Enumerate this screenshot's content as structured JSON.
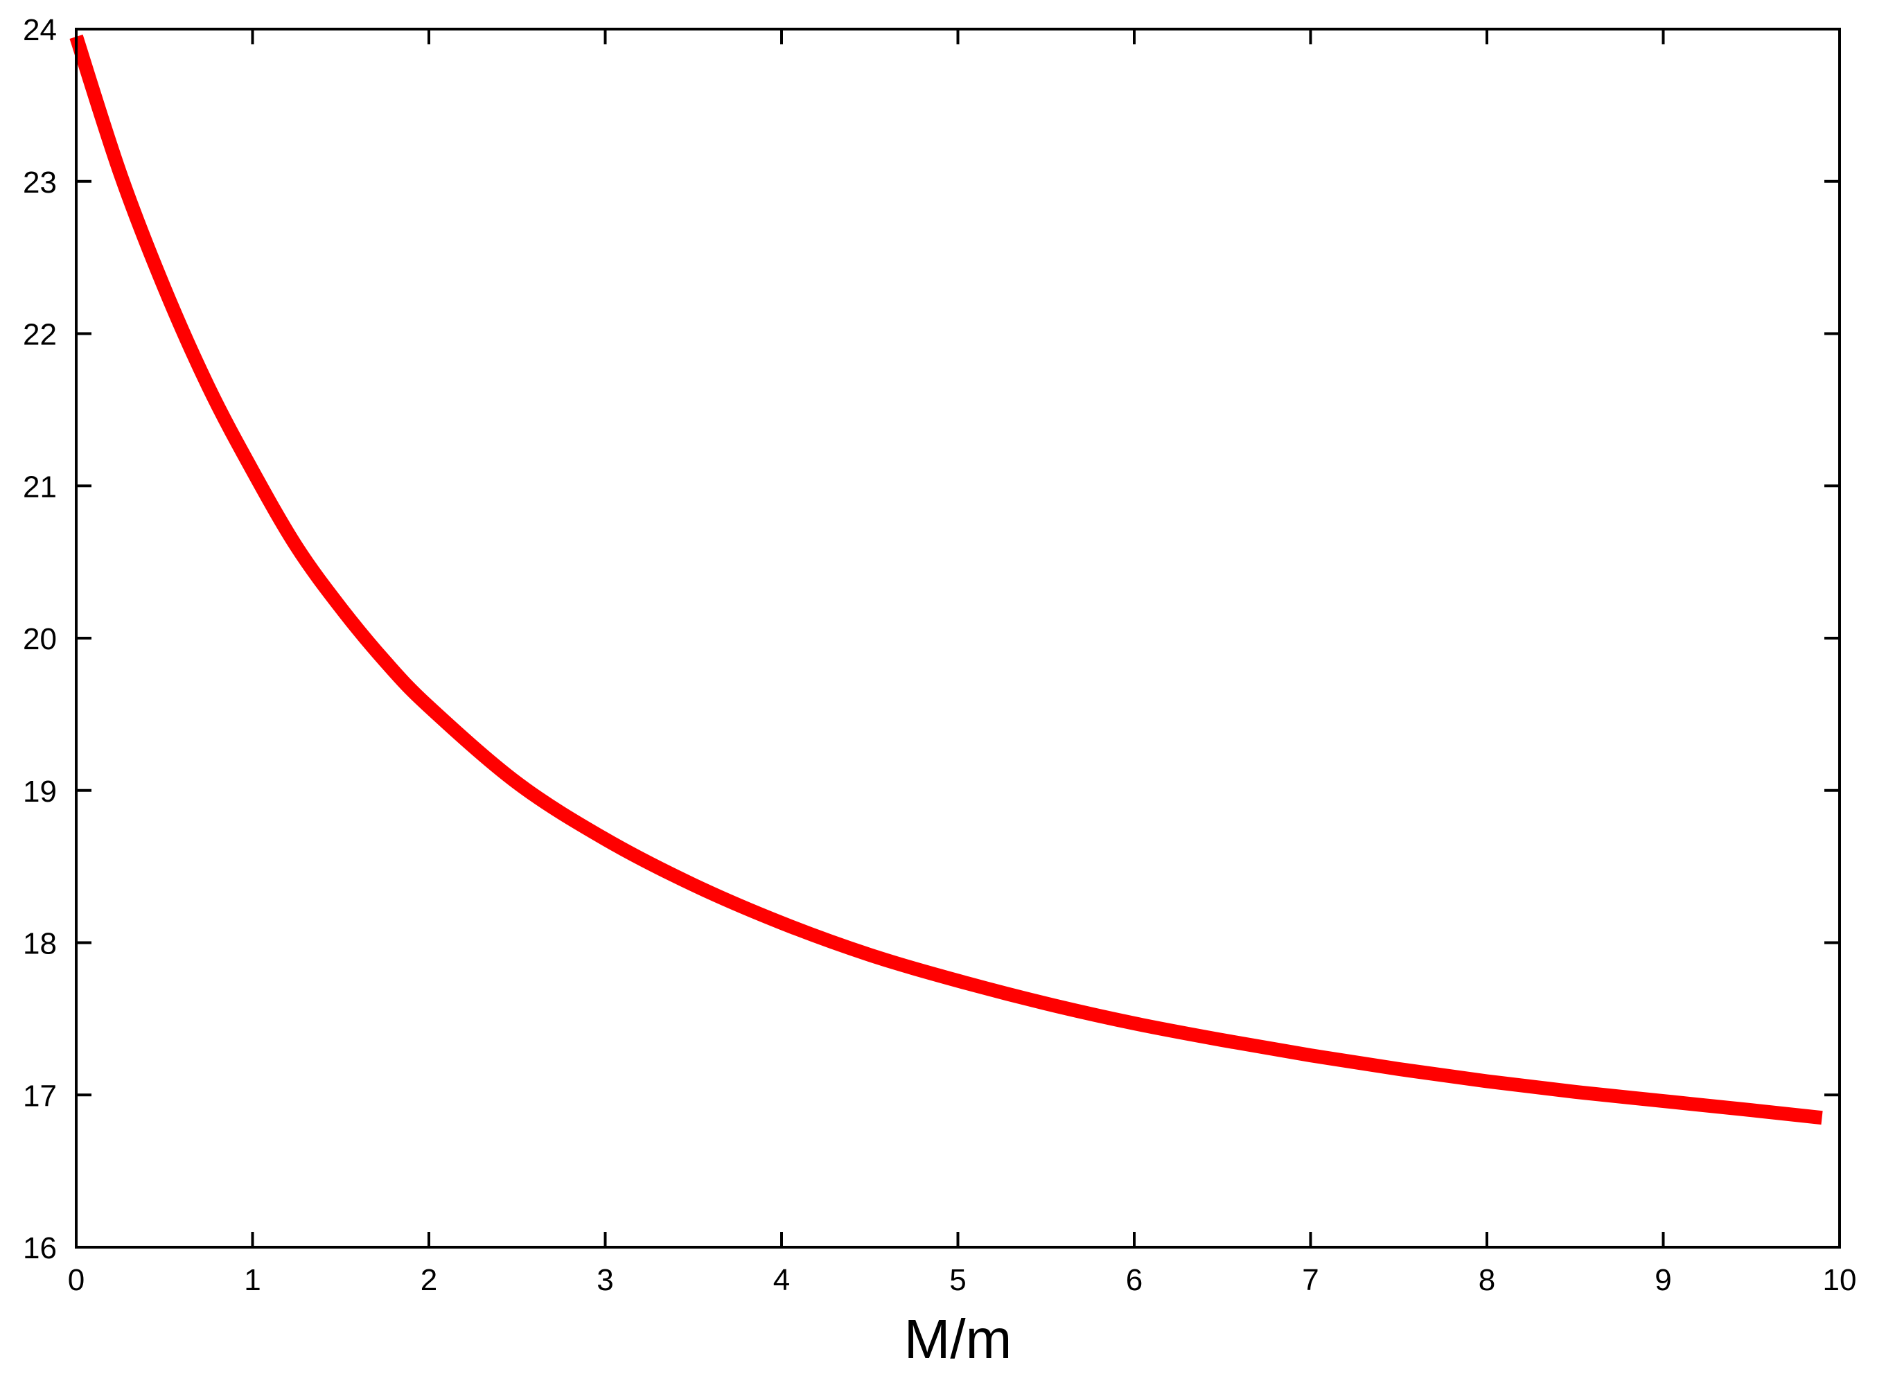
{
  "chart_data": {
    "type": "line",
    "title": "",
    "xlabel": "M/m",
    "ylabel": "",
    "xlim": [
      0,
      10
    ],
    "ylim": [
      16,
      24
    ],
    "x_ticks": [
      "0",
      "1",
      "2",
      "3",
      "4",
      "5",
      "6",
      "7",
      "8",
      "9",
      "10"
    ],
    "y_ticks": [
      "16",
      "17",
      "18",
      "19",
      "20",
      "21",
      "22",
      "23",
      "24"
    ],
    "grid": false,
    "legend": "none",
    "series": [
      {
        "color": "#ff0000",
        "x": [
          0,
          0.25,
          0.5,
          0.75,
          1,
          1.25,
          1.5,
          1.75,
          2,
          2.5,
          3,
          3.5,
          4,
          4.5,
          5,
          5.5,
          6,
          6.5,
          7,
          7.5,
          8,
          8.5,
          9,
          9.5,
          9.9
        ],
        "y": [
          23.95,
          23.05,
          22.3,
          21.65,
          21.1,
          20.6,
          20.2,
          19.85,
          19.55,
          19.05,
          18.68,
          18.38,
          18.13,
          17.92,
          17.75,
          17.6,
          17.47,
          17.36,
          17.26,
          17.17,
          17.09,
          17.02,
          16.96,
          16.9,
          16.85
        ]
      }
    ]
  }
}
